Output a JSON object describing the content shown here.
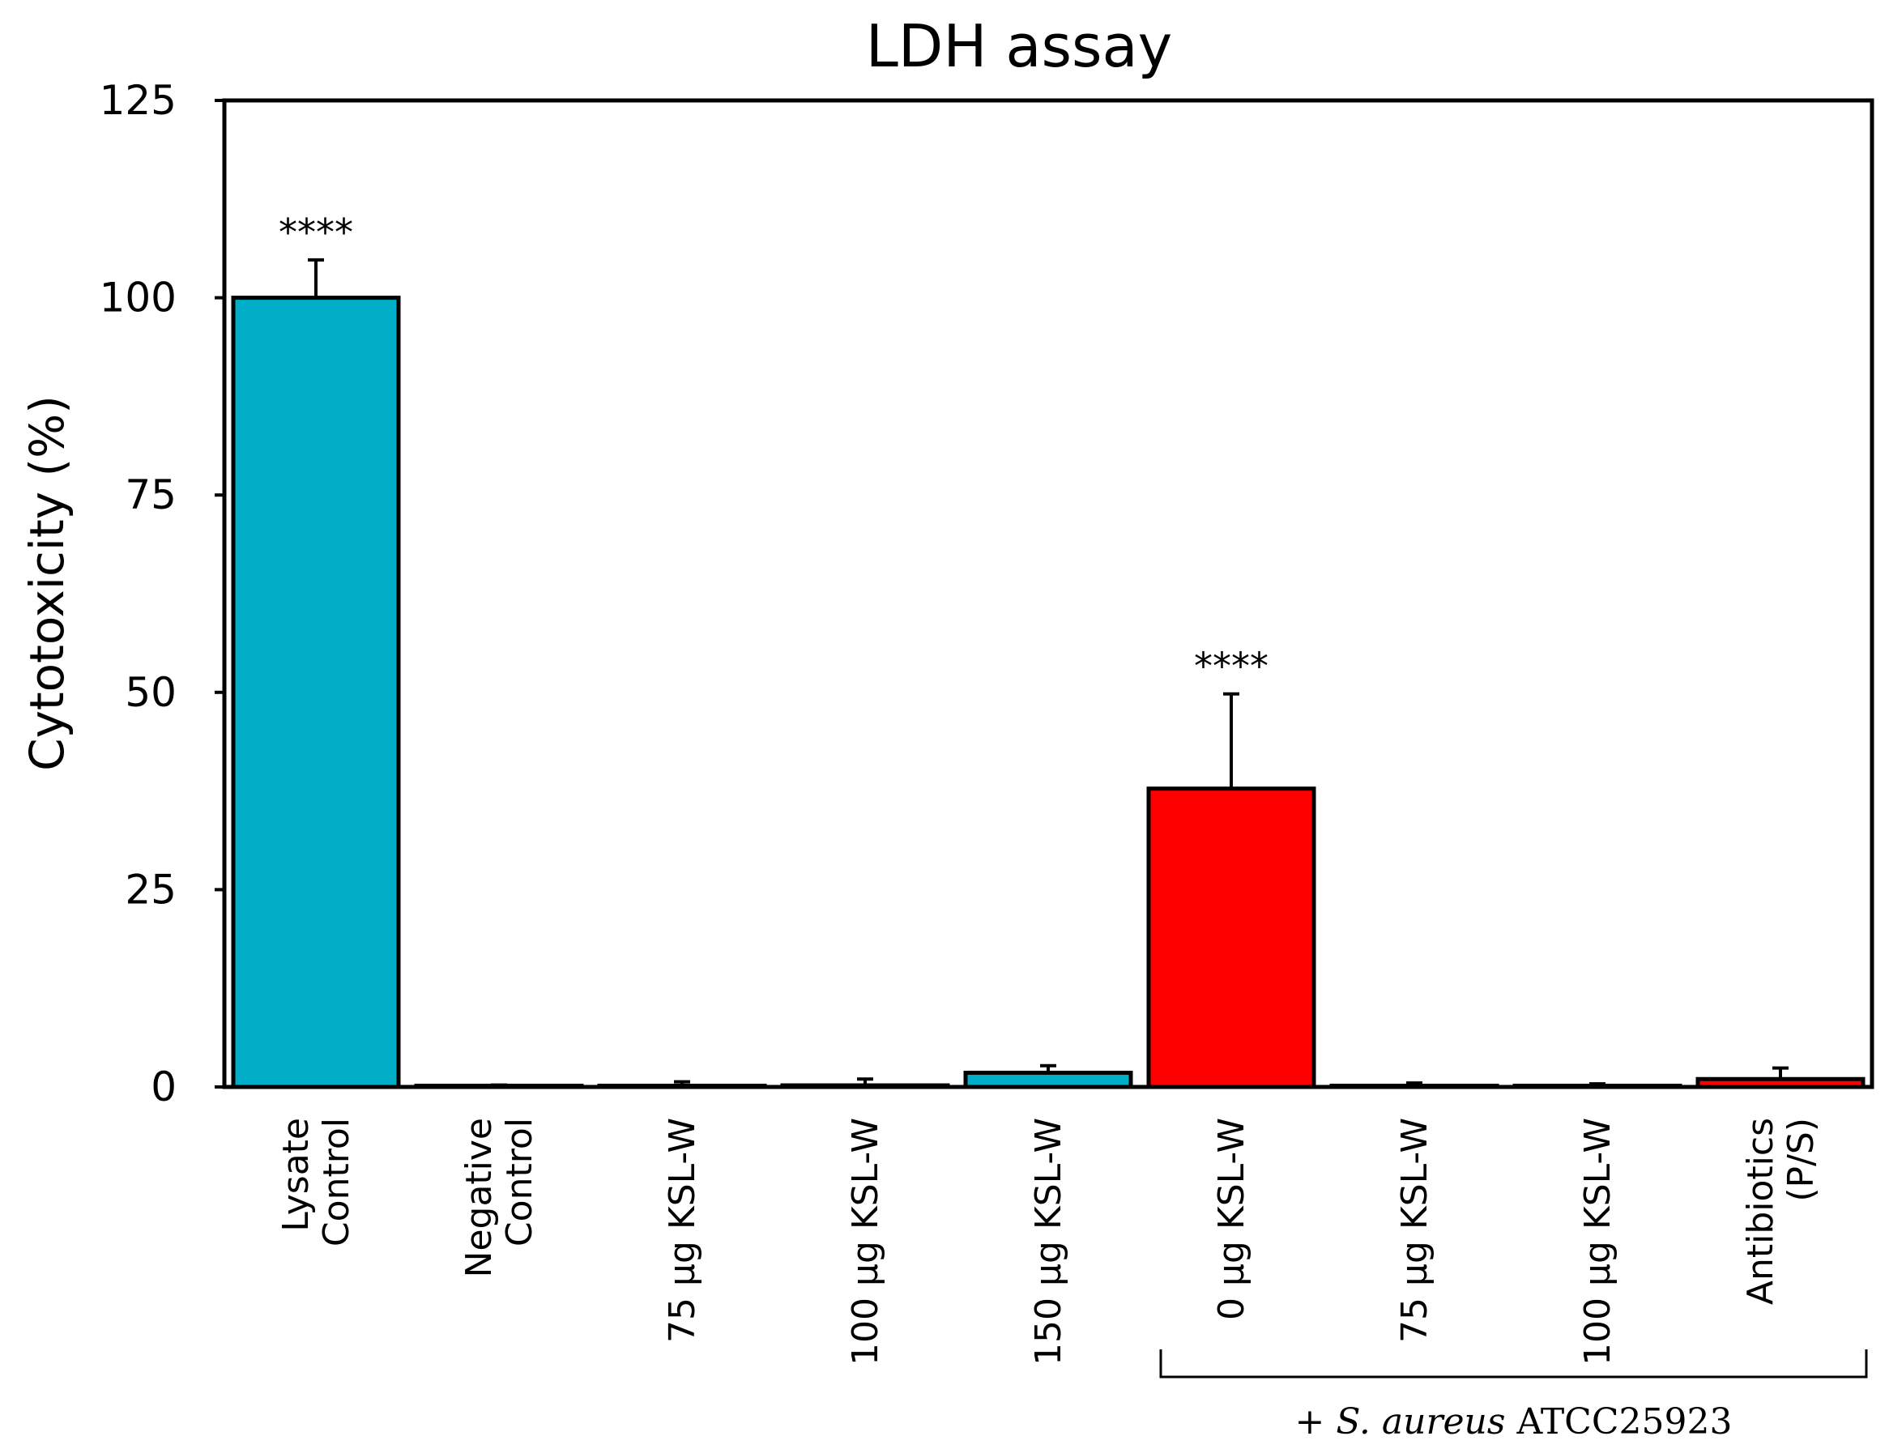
{
  "chart_data": {
    "type": "bar",
    "title": "LDH assay",
    "xlabel": "",
    "ylabel": "Cytotoxicity (%)",
    "ylim": [
      0,
      125
    ],
    "yticks": [
      0,
      25,
      50,
      75,
      100,
      125
    ],
    "grid": false,
    "legend": "none",
    "categories": [
      [
        "Lysate",
        "Control"
      ],
      [
        "Negative",
        "Control"
      ],
      [
        "75 µg KSL-W"
      ],
      [
        "100 µg KSL-W"
      ],
      [
        "150 µg KSL-W"
      ],
      [
        "0 µg KSL-W"
      ],
      [
        "75 µg KSL-W"
      ],
      [
        "100 µg KSL-W"
      ],
      [
        "Antibiotics",
        "(P/S)"
      ]
    ],
    "values": [
      100,
      0.1,
      0.15,
      0.2,
      1.8,
      37.8,
      0.1,
      0.1,
      1.0
    ],
    "errors": [
      4.8,
      0.15,
      0.5,
      0.8,
      0.9,
      12.0,
      0.4,
      0.3,
      1.4
    ],
    "colors": [
      "#00aec7",
      "#00aec7",
      "#00aec7",
      "#00aec7",
      "#00aec7",
      "#ff0000",
      "#ff0000",
      "#ff0000",
      "#ff0000"
    ],
    "annotations": [
      {
        "category_index": 0,
        "text": "****"
      },
      {
        "category_index": 5,
        "text": "****"
      }
    ],
    "group": {
      "from_index": 5,
      "to_index": 8,
      "label_prefix": "+ ",
      "label_italic": "S. aureus",
      "label_suffix": " ATCC25923"
    }
  }
}
